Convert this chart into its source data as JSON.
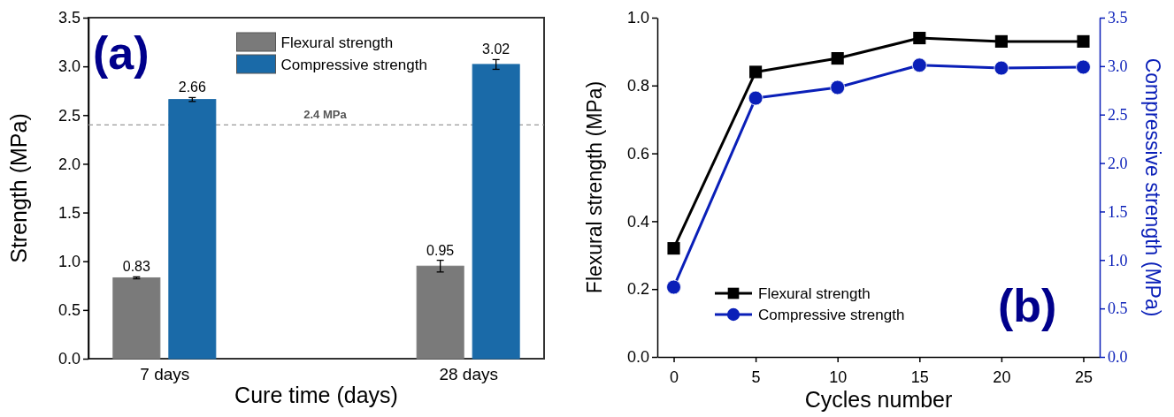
{
  "chart_data": [
    {
      "type": "bar",
      "xlabel": "Cure time (days)",
      "ylabel": "Strength (MPa)",
      "categories": [
        "7 days",
        "28 days"
      ],
      "series": [
        {
          "name": "Flexural strength",
          "color": "#7a7a7a",
          "values": [
            0.83,
            0.95
          ],
          "errors": [
            0.01,
            0.06
          ]
        },
        {
          "name": "Compressive strength",
          "color": "#1a6aa8",
          "values": [
            2.66,
            3.02
          ],
          "errors": [
            0.02,
            0.05
          ]
        }
      ],
      "ylim": [
        0,
        3.5
      ],
      "yticks": [
        {
          "value": 0,
          "label": "0.0"
        },
        0.5,
        {
          "value": 1,
          "label": "1.0"
        },
        1.5,
        {
          "value": 2,
          "label": "2.0"
        },
        2.5,
        {
          "value": 3,
          "label": "3.0"
        },
        3.5
      ],
      "ref_lines": [
        {
          "axis": "y",
          "value": 2.4,
          "label": "2.4 MPa",
          "color": "#999999",
          "line_style": "dashed"
        }
      ],
      "data_labels": true,
      "legend": "top",
      "grid": false,
      "annotations": [
        "(a)"
      ]
    },
    {
      "type": "line",
      "xlabel": "Cycles number",
      "ylabel": "Flexural strength (MPa)",
      "y2label": "Compressive strength (MPa)",
      "x": [
        0,
        5,
        10,
        15,
        20,
        25
      ],
      "series": [
        {
          "name": "Flexural strength",
          "color": "#000000",
          "marker": "square",
          "values": [
            0.32,
            0.84,
            0.88,
            0.94,
            0.93,
            0.93
          ]
        },
        {
          "name": "Compressive strength",
          "color": "#0a1fb8",
          "marker": "circle",
          "axis": "y2",
          "values": [
            0.72,
            2.67,
            2.78,
            3.01,
            2.98,
            2.99
          ]
        }
      ],
      "xlim": [
        -1,
        26
      ],
      "xticks": [
        0,
        5,
        10,
        15,
        20,
        25
      ],
      "ylim": [
        0,
        1
      ],
      "yticks": [
        {
          "value": 0,
          "label": "0.0"
        },
        0.2,
        0.4,
        0.6,
        0.8,
        {
          "value": 1,
          "label": "1.0"
        }
      ],
      "y2lim": [
        0,
        3.5
      ],
      "y2ticks": [
        {
          "value": 0,
          "label": "0.0"
        },
        0.5,
        {
          "value": 1,
          "label": "1.0"
        },
        1.5,
        {
          "value": 2,
          "label": "2.0"
        },
        2.5,
        {
          "value": 3,
          "label": "3.0"
        },
        3.5
      ],
      "line_style": "solid",
      "legend": "bottom left",
      "grid": false,
      "annotations": [
        "(b)"
      ]
    }
  ]
}
